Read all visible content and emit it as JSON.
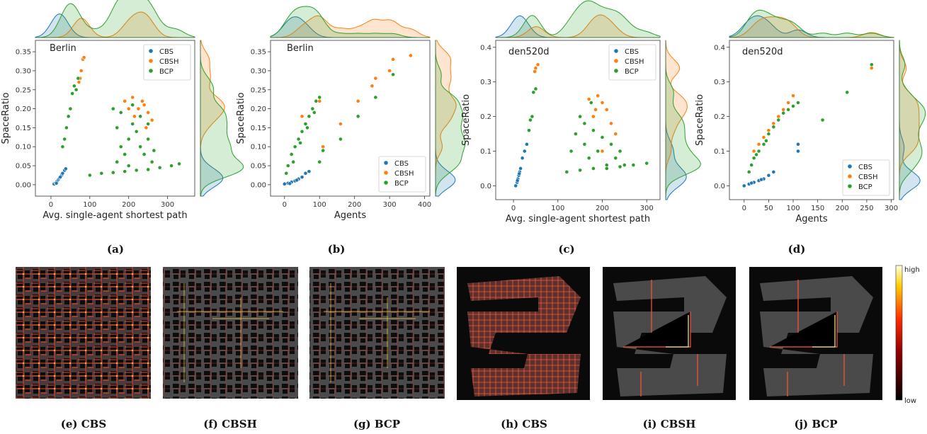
{
  "colors": {
    "CBS": "#1f77b4",
    "CBSH": "#ff7f0e",
    "BCP": "#2ca02c"
  },
  "captions": [
    "(a)",
    "(b)",
    "(c)",
    "(d)",
    "(e) CBS",
    "(f) CBSH",
    "(g) BCP",
    "(h) CBS",
    "(i) CBSH",
    "(j) BCP"
  ],
  "colorbar": {
    "high": "high",
    "low": "low"
  },
  "chart_data": [
    {
      "type": "scatter",
      "title": "Berlin",
      "xlabel": "Avg. single-agent shortest path",
      "ylabel": "SpaceRatio",
      "xlim": [
        -40,
        370
      ],
      "ylim": [
        -0.03,
        0.38
      ],
      "xticks": [
        0,
        100,
        200,
        300
      ],
      "yticks": [
        0.0,
        0.05,
        0.1,
        0.15,
        0.2,
        0.25,
        0.3,
        0.35
      ],
      "legend_position": "top-right",
      "marginals": "kde",
      "series": [
        {
          "name": "CBS",
          "points": [
            [
              8,
              0.002
            ],
            [
              12,
              0.005
            ],
            [
              15,
              0.008
            ],
            [
              18,
              0.012
            ],
            [
              20,
              0.015
            ],
            [
              22,
              0.018
            ],
            [
              25,
              0.022
            ],
            [
              28,
              0.026
            ],
            [
              30,
              0.03
            ],
            [
              35,
              0.038
            ],
            [
              38,
              0.042
            ],
            [
              14,
              0.004
            ],
            [
              24,
              0.02
            ]
          ]
        },
        {
          "name": "CBSH",
          "points": [
            [
              75,
              0.28
            ],
            [
              78,
              0.3
            ],
            [
              82,
              0.33
            ],
            [
              85,
              0.335
            ],
            [
              72,
              0.27
            ],
            [
              190,
              0.22
            ],
            [
              210,
              0.23
            ],
            [
              225,
              0.2
            ],
            [
              240,
              0.21
            ],
            [
              250,
              0.19
            ],
            [
              235,
              0.22
            ],
            [
              200,
              0.2
            ],
            [
              215,
              0.18
            ],
            [
              260,
              0.17
            ],
            [
              245,
              0.15
            ]
          ]
        },
        {
          "name": "BCP",
          "points": [
            [
              30,
              0.1
            ],
            [
              35,
              0.12
            ],
            [
              40,
              0.15
            ],
            [
              45,
              0.18
            ],
            [
              50,
              0.2
            ],
            [
              55,
              0.24
            ],
            [
              60,
              0.26
            ],
            [
              65,
              0.25
            ],
            [
              70,
              0.28
            ],
            [
              160,
              0.2
            ],
            [
              170,
              0.15
            ],
            [
              180,
              0.1
            ],
            [
              190,
              0.08
            ],
            [
              200,
              0.12
            ],
            [
              210,
              0.16
            ],
            [
              220,
              0.14
            ],
            [
              230,
              0.1
            ],
            [
              240,
              0.08
            ],
            [
              250,
              0.12
            ],
            [
              260,
              0.06
            ],
            [
              170,
              0.06
            ],
            [
              180,
              0.19
            ],
            [
              200,
              0.05
            ],
            [
              210,
              0.21
            ],
            [
              230,
              0.18
            ],
            [
              250,
              0.16
            ],
            [
              265,
              0.09
            ],
            [
              100,
              0.025
            ],
            [
              130,
              0.03
            ],
            [
              160,
              0.032
            ],
            [
              190,
              0.035
            ],
            [
              220,
              0.038
            ],
            [
              250,
              0.04
            ],
            [
              280,
              0.045
            ],
            [
              310,
              0.05
            ],
            [
              330,
              0.055
            ]
          ]
        }
      ]
    },
    {
      "type": "scatter",
      "title": "Berlin",
      "xlabel": "Agents",
      "ylabel": "SpaceRatio",
      "xlim": [
        -40,
        415
      ],
      "ylim": [
        -0.03,
        0.38
      ],
      "xticks": [
        0,
        100,
        200,
        300,
        400
      ],
      "yticks": [
        0.0,
        0.05,
        0.1,
        0.15,
        0.2,
        0.25,
        0.3,
        0.35
      ],
      "legend_position": "bottom-right",
      "marginals": "kde",
      "series": [
        {
          "name": "CBS",
          "points": [
            [
              0,
              0.002
            ],
            [
              10,
              0.004
            ],
            [
              20,
              0.007
            ],
            [
              30,
              0.01
            ],
            [
              40,
              0.015
            ],
            [
              50,
              0.02
            ],
            [
              60,
              0.03
            ],
            [
              70,
              0.035
            ],
            [
              15,
              0.003
            ],
            [
              35,
              0.012
            ]
          ]
        },
        {
          "name": "CBSH",
          "points": [
            [
              100,
              0.22
            ],
            [
              110,
              0.1
            ],
            [
              160,
              0.16
            ],
            [
              210,
              0.22
            ],
            [
              250,
              0.26
            ],
            [
              260,
              0.28
            ],
            [
              300,
              0.3
            ],
            [
              310,
              0.33
            ],
            [
              360,
              0.34
            ],
            [
              50,
              0.18
            ],
            [
              80,
              0.2
            ]
          ]
        },
        {
          "name": "BCP",
          "points": [
            [
              5,
              0.03
            ],
            [
              10,
              0.05
            ],
            [
              20,
              0.08
            ],
            [
              30,
              0.1
            ],
            [
              40,
              0.12
            ],
            [
              50,
              0.14
            ],
            [
              60,
              0.16
            ],
            [
              70,
              0.18
            ],
            [
              80,
              0.2
            ],
            [
              90,
              0.22
            ],
            [
              100,
              0.23
            ],
            [
              100,
              0.06
            ],
            [
              110,
              0.09
            ],
            [
              160,
              0.12
            ],
            [
              210,
              0.18
            ],
            [
              260,
              0.23
            ],
            [
              310,
              0.29
            ],
            [
              25,
              0.06
            ],
            [
              45,
              0.11
            ],
            [
              65,
              0.15
            ],
            [
              85,
              0.19
            ]
          ]
        }
      ]
    },
    {
      "type": "scatter",
      "title": "den520d",
      "xlabel": "Avg. single-agent shortest path",
      "ylabel": "SpaceRatio",
      "xlim": [
        -40,
        330
      ],
      "ylim": [
        -0.04,
        0.42
      ],
      "xticks": [
        0,
        100,
        200,
        300
      ],
      "yticks": [
        0.0,
        0.1,
        0.2,
        0.3,
        0.4
      ],
      "legend_position": "top-right",
      "marginals": "kde",
      "series": [
        {
          "name": "CBS",
          "points": [
            [
              5,
              0.0
            ],
            [
              8,
              0.01
            ],
            [
              10,
              0.02
            ],
            [
              12,
              0.03
            ],
            [
              14,
              0.04
            ],
            [
              16,
              0.05
            ],
            [
              20,
              0.08
            ],
            [
              25,
              0.1
            ],
            [
              30,
              0.12
            ],
            [
              9,
              0.015
            ],
            [
              13,
              0.035
            ]
          ]
        },
        {
          "name": "CBSH",
          "points": [
            [
              50,
              0.34
            ],
            [
              55,
              0.35
            ],
            [
              48,
              0.33
            ],
            [
              170,
              0.25
            ],
            [
              190,
              0.26
            ],
            [
              200,
              0.24
            ],
            [
              210,
              0.22
            ],
            [
              180,
              0.2
            ],
            [
              220,
              0.18
            ],
            [
              230,
              0.15
            ],
            [
              200,
              0.1
            ],
            [
              185,
              0.22
            ]
          ]
        },
        {
          "name": "BCP",
          "points": [
            [
              35,
              0.16
            ],
            [
              38,
              0.19
            ],
            [
              42,
              0.2
            ],
            [
              45,
              0.27
            ],
            [
              50,
              0.28
            ],
            [
              130,
              0.1
            ],
            [
              140,
              0.15
            ],
            [
              150,
              0.2
            ],
            [
              160,
              0.12
            ],
            [
              170,
              0.08
            ],
            [
              180,
              0.16
            ],
            [
              190,
              0.1
            ],
            [
              200,
              0.14
            ],
            [
              210,
              0.06
            ],
            [
              220,
              0.12
            ],
            [
              230,
              0.08
            ],
            [
              240,
              0.1
            ],
            [
              250,
              0.06
            ],
            [
              160,
              0.18
            ],
            [
              175,
              0.24
            ],
            [
              120,
              0.04
            ],
            [
              150,
              0.045
            ],
            [
              180,
              0.05
            ],
            [
              210,
              0.05
            ],
            [
              240,
              0.055
            ],
            [
              270,
              0.06
            ],
            [
              300,
              0.065
            ]
          ]
        }
      ]
    },
    {
      "type": "scatter",
      "title": "den520d",
      "xlabel": "Agents",
      "ylabel": "SpaceRatio",
      "xlim": [
        -30,
        305
      ],
      "ylim": [
        -0.04,
        0.42
      ],
      "xticks": [
        0,
        50,
        100,
        150,
        200,
        250,
        300
      ],
      "yticks": [
        0.0,
        0.1,
        0.2,
        0.3,
        0.4
      ],
      "legend_position": "bottom-right",
      "marginals": "kde",
      "series": [
        {
          "name": "CBS",
          "points": [
            [
              0,
              0.0
            ],
            [
              10,
              0.005
            ],
            [
              20,
              0.01
            ],
            [
              30,
              0.015
            ],
            [
              40,
              0.02
            ],
            [
              50,
              0.03
            ],
            [
              60,
              0.04
            ],
            [
              110,
              0.1
            ],
            [
              110,
              0.12
            ],
            [
              15,
              0.008
            ],
            [
              35,
              0.018
            ]
          ]
        },
        {
          "name": "CBSH",
          "points": [
            [
              260,
              0.34
            ],
            [
              100,
              0.26
            ],
            [
              90,
              0.24
            ],
            [
              80,
              0.22
            ],
            [
              70,
              0.2
            ],
            [
              60,
              0.18
            ],
            [
              50,
              0.16
            ],
            [
              40,
              0.14
            ],
            [
              30,
              0.12
            ],
            [
              20,
              0.1
            ]
          ]
        },
        {
          "name": "BCP",
          "points": [
            [
              10,
              0.04
            ],
            [
              20,
              0.08
            ],
            [
              30,
              0.1
            ],
            [
              40,
              0.12
            ],
            [
              50,
              0.15
            ],
            [
              60,
              0.17
            ],
            [
              70,
              0.19
            ],
            [
              80,
              0.21
            ],
            [
              90,
              0.22
            ],
            [
              100,
              0.23
            ],
            [
              110,
              0.24
            ],
            [
              160,
              0.19
            ],
            [
              210,
              0.27
            ],
            [
              260,
              0.35
            ],
            [
              15,
              0.06
            ],
            [
              25,
              0.09
            ],
            [
              45,
              0.13
            ]
          ]
        }
      ]
    }
  ]
}
